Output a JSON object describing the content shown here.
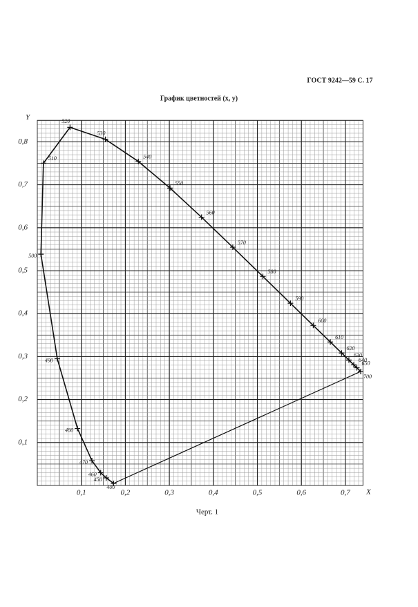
{
  "header": "ГОСТ 9242—59 С. 17",
  "caption": "Черт. 1",
  "chart_data": {
    "type": "line",
    "title": "График цветностей (x, y)",
    "x_label": "X",
    "y_label": "Y",
    "x": [
      0.1733,
      0.1566,
      0.144,
      0.1241,
      0.0913,
      0.0454,
      0.0082,
      0.0139,
      0.0743,
      0.1547,
      0.2296,
      0.3016,
      0.3731,
      0.4441,
      0.5125,
      0.5752,
      0.627,
      0.6658,
      0.6915,
      0.7079,
      0.719,
      0.726,
      0.7347
    ],
    "values": [
      0.0048,
      0.0177,
      0.0297,
      0.0578,
      0.1327,
      0.295,
      0.5384,
      0.7502,
      0.8338,
      0.8059,
      0.7543,
      0.6923,
      0.6245,
      0.5547,
      0.4866,
      0.4242,
      0.3725,
      0.334,
      0.3083,
      0.292,
      0.2809,
      0.274,
      0.2653
    ],
    "point_labels": [
      400,
      450,
      460,
      470,
      480,
      490,
      500,
      510,
      520,
      530,
      540,
      550,
      560,
      570,
      580,
      590,
      600,
      610,
      620,
      630,
      640,
      650,
      700
    ],
    "color": "#111111",
    "xlim": [
      0,
      0.74
    ],
    "ylim": [
      0,
      0.85
    ],
    "xticks": [
      {
        "value": 0.1,
        "label": "0,1"
      },
      {
        "value": 0.2,
        "label": "0,2"
      },
      {
        "value": 0.3,
        "label": "0,3"
      },
      {
        "value": 0.4,
        "label": "0,4"
      },
      {
        "value": 0.5,
        "label": "0,5"
      },
      {
        "value": 0.6,
        "label": "0,6"
      },
      {
        "value": 0.7,
        "label": "0,7"
      }
    ],
    "yticks": [
      {
        "value": 0.1,
        "label": "0,1"
      },
      {
        "value": 0.2,
        "label": "0,2"
      },
      {
        "value": 0.3,
        "label": "0,3"
      },
      {
        "value": 0.4,
        "label": "0,4"
      },
      {
        "value": 0.5,
        "label": "0,5"
      },
      {
        "value": 0.6,
        "label": "0,6"
      },
      {
        "value": 0.7,
        "label": "0,7"
      },
      {
        "value": 0.8,
        "label": "0,8"
      }
    ],
    "grid": true,
    "minor_grid": true
  }
}
